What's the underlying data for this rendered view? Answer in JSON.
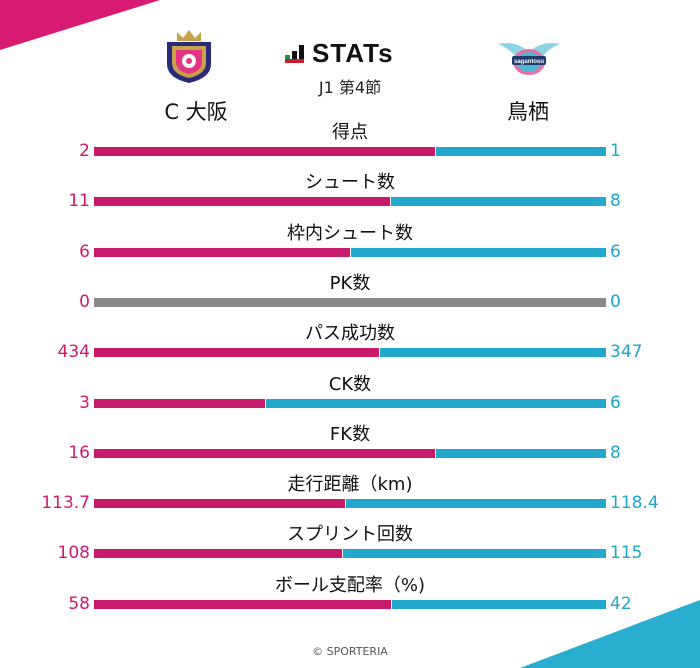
{
  "header": {
    "title": "STATs",
    "round": "J1 第4節",
    "home_team": "C 大阪",
    "away_team": "鳥栖",
    "home_emblem_text": "",
    "away_emblem_text": "sagantosu"
  },
  "colors": {
    "home": "#c81a6b",
    "away": "#22a8cc",
    "neutral": "#8a8a8a",
    "corner_tl": "#d81b72",
    "corner_br": "#2aaed0"
  },
  "chart_data": {
    "type": "bar",
    "stacked_horizontal": true,
    "categories": [
      "得点",
      "シュート数",
      "枠内シュート数",
      "PK数",
      "パス成功数",
      "CK数",
      "FK数",
      "走行距離（km)",
      "スプリント回数",
      "ボール支配率（%)"
    ],
    "series": [
      {
        "name": "C 大阪",
        "values": [
          2,
          11,
          6,
          0,
          434,
          3,
          16,
          113.7,
          108,
          58
        ]
      },
      {
        "name": "鳥栖",
        "values": [
          1,
          8,
          6,
          0,
          347,
          6,
          8,
          118.4,
          115,
          42
        ]
      }
    ],
    "display_values": {
      "home": [
        "2",
        "11",
        "6",
        "0",
        "434",
        "3",
        "16",
        "113.7",
        "108",
        "58"
      ],
      "away": [
        "1",
        "8",
        "6",
        "0",
        "347",
        "6",
        "8",
        "118.4",
        "115",
        "42"
      ]
    }
  },
  "footer": {
    "credit": "© SPORTERIA"
  }
}
